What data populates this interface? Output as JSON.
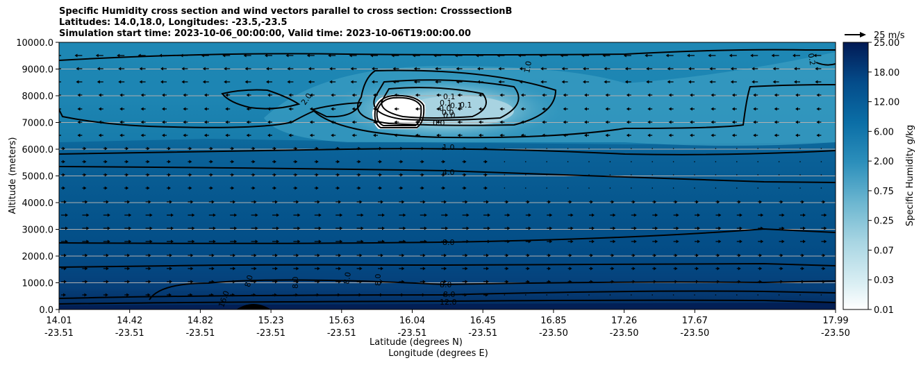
{
  "chart_data": {
    "type": "contour",
    "title_lines": [
      "Specific Humidity cross section and wind vectors parallel to cross section: CrosssectionB",
      "Latitudes: 14.0,18.0, Longitudes: -23.5,-23.5",
      "Simulation start time: 2023-10-06_00:00:00, Valid time: 2023-10-06T19:00:00.00"
    ],
    "ylabel": "Altitude (meters)",
    "xlabel_lat": "Latitude (degrees N)",
    "xlabel_lon": "Longitude (degrees E)",
    "ylim": [
      0,
      10000
    ],
    "yticks": [
      "0.0",
      "1000.0",
      "2000.0",
      "3000.0",
      "4000.0",
      "5000.0",
      "6000.0",
      "7000.0",
      "8000.0",
      "9000.0",
      "10000.0"
    ],
    "xticks_lat": [
      "14.01",
      "14.42",
      "14.82",
      "15.23",
      "15.63",
      "16.04",
      "16.45",
      "16.85",
      "17.26",
      "17.67",
      "17.99"
    ],
    "xticks_lon": [
      "-23.51",
      "-23.51",
      "-23.51",
      "-23.51",
      "-23.51",
      "-23.51",
      "-23.51",
      "-23.50",
      "-23.50",
      "-23.50",
      "-23.50"
    ],
    "colorbar_label": "Specific Humidity g/kg",
    "colorbar_ticks": [
      "0.01",
      "0.03",
      "0.07",
      "0.25",
      "0.75",
      "2.00",
      "6.00",
      "12.00",
      "18.00",
      "25.00"
    ],
    "quiver_key": "25 m/s",
    "contour_labels": [
      "0.1",
      "0.1",
      "0.0",
      "0.1",
      "0.0",
      "0.0",
      "0.1",
      "0.0",
      "1.0",
      "2.0",
      "1.0",
      "4.0",
      "8.0",
      "8.0",
      "8.0",
      "8.0",
      "8.0",
      "8.0",
      "8.0",
      "12.0",
      "16.0",
      "1.0",
      "0.2"
    ]
  },
  "colors": {
    "axis": "#000000",
    "grid": "#b0b0b0"
  }
}
